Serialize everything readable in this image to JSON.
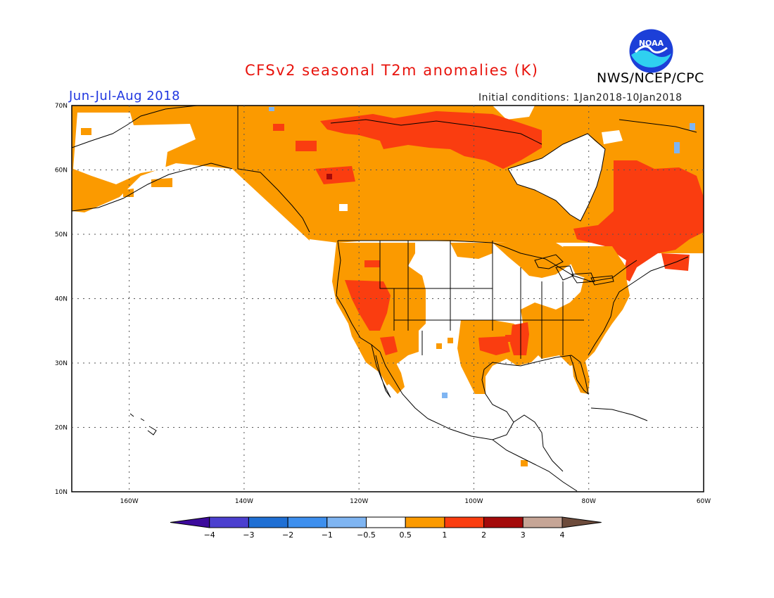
{
  "header": {
    "title": "CFSv2 seasonal T2m anomalies (K)",
    "agency": "NWS/NCEP/CPC",
    "season": "Jun-Jul-Aug 2018",
    "initial_conditions": "Initial conditions: 1Jan2018-10Jan2018",
    "logo_text": "NOAA"
  },
  "map": {
    "lat_labels": [
      "70N",
      "60N",
      "50N",
      "40N",
      "30N",
      "20N",
      "10N"
    ],
    "lon_labels": [
      "160W",
      "140W",
      "120W",
      "100W",
      "80W",
      "60W"
    ],
    "lat_values": [
      70,
      60,
      50,
      40,
      30,
      20,
      10
    ],
    "lon_values": [
      -160,
      -140,
      -120,
      -100,
      -80,
      -60
    ],
    "extent": {
      "lon_min": -170,
      "lon_max": -60,
      "lat_min": 10,
      "lat_max": 70
    }
  },
  "legend": {
    "labels": [
      "-4",
      "-3",
      "-2",
      "-1",
      "-0.5",
      "0.5",
      "1",
      "2",
      "3",
      "4"
    ],
    "colors": [
      "#3c0a9c",
      "#4b3fcf",
      "#1f6fd4",
      "#3d8fee",
      "#7fb5f2",
      "#ffffff",
      "#fb9a00",
      "#fa3d10",
      "#a40a0a",
      "#c6a596",
      "#6d4b3b"
    ]
  },
  "colors": {
    "anomaly_0_5_1": "#fb9a00",
    "anomaly_1_2": "#fa3d10",
    "anomaly_2_3": "#a40a0a",
    "anomaly_neg_0_5_1": "#7fb5f2",
    "noaa_blue": "#1c3fd8",
    "noaa_cyan": "#2fd0f0"
  }
}
